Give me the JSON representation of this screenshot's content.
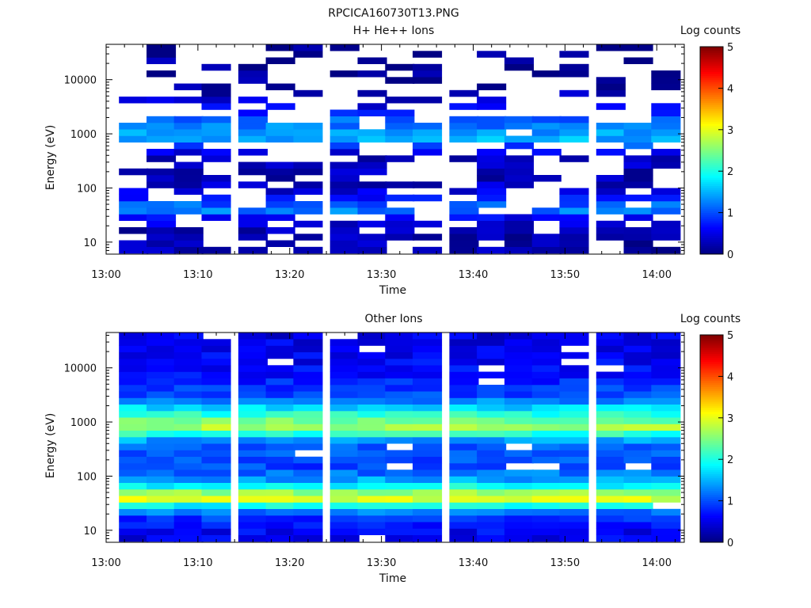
{
  "figure_title": "RPCICA160730T13.PNG",
  "colors": {
    "colormap": [
      "#00007f",
      "#0000ff",
      "#007fff",
      "#00ffff",
      "#7fff7f",
      "#ffff00",
      "#ff7f00",
      "#ff0000",
      "#7f0000"
    ],
    "background": "#ffffff",
    "axis": "#000000"
  },
  "chart_data": [
    {
      "type": "heatmap",
      "title": "H+ He++ Ions",
      "xlabel": "Time",
      "ylabel": "Energy (eV)",
      "x_ticks": [
        "13:00",
        "13:10",
        "13:20",
        "13:30",
        "13:40",
        "13:50",
        "14:00"
      ],
      "xlim": [
        "13:00",
        "14:03"
      ],
      "y_scale": "log",
      "y_ticks": [
        "10",
        "100",
        "1000",
        "10000"
      ],
      "ylim": [
        6,
        45000
      ],
      "colorbar": {
        "label": "Log counts",
        "range": [
          0,
          5
        ],
        "ticks": [
          "0",
          "1",
          "2",
          "3",
          "4",
          "5"
        ]
      },
      "time_bins": [
        "13:03",
        "13:06",
        "13:09",
        "13:12",
        "13:16",
        "13:19",
        "13:22",
        "13:26",
        "13:29",
        "13:32",
        "13:35",
        "13:39",
        "13:42",
        "13:45",
        "13:48",
        "13:51",
        "13:55",
        "13:58",
        "14:01"
      ],
      "n_energy_bins": 32,
      "energy_range_eV": [
        6.2,
        45000
      ],
      "profile": [
        {
          "energy_eV": 8,
          "log_counts": 0.25
        },
        {
          "energy_eV": 15,
          "log_counts": 0.2
        },
        {
          "energy_eV": 30,
          "log_counts": 0.6
        },
        {
          "energy_eV": 40,
          "log_counts": 1.4
        },
        {
          "energy_eV": 70,
          "log_counts": 0.55
        },
        {
          "energy_eV": 150,
          "log_counts": 0.25
        },
        {
          "energy_eV": 400,
          "log_counts": 0.3
        },
        {
          "energy_eV": 800,
          "log_counts": 1.5
        },
        {
          "energy_eV": 1700,
          "log_counts": 1.15
        },
        {
          "energy_eV": 3000,
          "log_counts": 0.55
        },
        {
          "energy_eV": 8000,
          "log_counts": 0.15
        },
        {
          "energy_eV": 40000,
          "log_counts": 0.1
        }
      ],
      "empty_fraction_low": 0.2,
      "empty_fraction_high": 0.75,
      "seed": 7
    },
    {
      "type": "heatmap",
      "title": "Other Ions",
      "xlabel": "Time",
      "ylabel": "Energy (eV)",
      "x_ticks": [
        "13:00",
        "13:10",
        "13:20",
        "13:30",
        "13:40",
        "13:50",
        "14:00"
      ],
      "xlim": [
        "13:00",
        "14:03"
      ],
      "y_scale": "log",
      "y_ticks": [
        "10",
        "100",
        "1000",
        "10000"
      ],
      "ylim": [
        6,
        45000
      ],
      "colorbar": {
        "label": "Log counts",
        "range": [
          0,
          5
        ],
        "ticks": [
          "0",
          "1",
          "2",
          "3",
          "4",
          "5"
        ]
      },
      "time_bins": [
        "13:03",
        "13:06",
        "13:09",
        "13:12",
        "13:16",
        "13:19",
        "13:22",
        "13:26",
        "13:29",
        "13:32",
        "13:35",
        "13:39",
        "13:42",
        "13:45",
        "13:48",
        "13:51",
        "13:55",
        "13:58",
        "14:01"
      ],
      "n_energy_bins": 32,
      "energy_range_eV": [
        6.2,
        45000
      ],
      "profile": [
        {
          "energy_eV": 8,
          "log_counts": 0.55
        },
        {
          "energy_eV": 15,
          "log_counts": 0.75
        },
        {
          "energy_eV": 25,
          "log_counts": 1.4
        },
        {
          "energy_eV": 35,
          "log_counts": 2.7
        },
        {
          "energy_eV": 42,
          "log_counts": 3.2
        },
        {
          "energy_eV": 55,
          "log_counts": 2.3
        },
        {
          "energy_eV": 80,
          "log_counts": 1.5
        },
        {
          "energy_eV": 150,
          "log_counts": 0.95
        },
        {
          "energy_eV": 400,
          "log_counts": 1.1
        },
        {
          "energy_eV": 800,
          "log_counts": 2.7
        },
        {
          "energy_eV": 1100,
          "log_counts": 2.4
        },
        {
          "energy_eV": 1700,
          "log_counts": 1.8
        },
        {
          "energy_eV": 3000,
          "log_counts": 1.0
        },
        {
          "energy_eV": 10000,
          "log_counts": 0.6
        },
        {
          "energy_eV": 40000,
          "log_counts": 0.5
        }
      ],
      "empty_fraction_low": 0.03,
      "empty_fraction_high": 0.1,
      "seed": 19
    }
  ]
}
